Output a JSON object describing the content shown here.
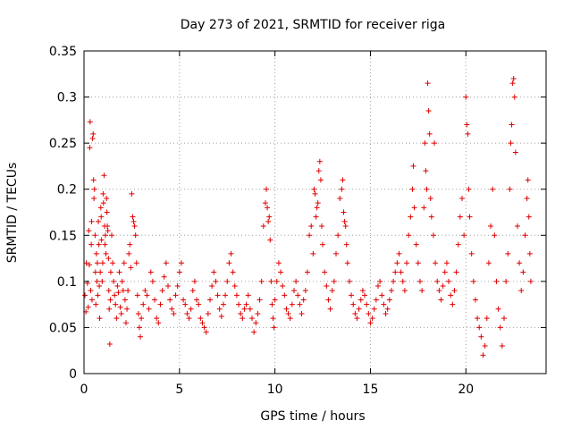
{
  "chart_data": {
    "type": "scatter",
    "title": "Day 273 of 2021, SRMTID for receiver riga",
    "xlabel": "GPS time / hours",
    "ylabel": "SRMTID / TECUs",
    "xlim": [
      0,
      24.2
    ],
    "ylim": [
      0,
      0.35
    ],
    "xticks": [
      0,
      5,
      10,
      15,
      20
    ],
    "xtick_labels": [
      "0",
      "5",
      "10",
      "15",
      "20"
    ],
    "yticks": [
      0,
      0.05,
      0.1,
      0.15,
      0.2,
      0.25,
      0.3,
      0.35
    ],
    "ytick_labels": [
      "0",
      "0.05",
      "0.1",
      "0.15",
      "0.2",
      "0.25",
      "0.3",
      "0.35"
    ],
    "grid": true,
    "marker": "+",
    "series": [
      {
        "name": "SRMTID",
        "color": "#e00000",
        "points": [
          [
            0.05,
            0.085
          ],
          [
            0.1,
            0.067
          ],
          [
            0.12,
            0.12
          ],
          [
            0.18,
            0.098
          ],
          [
            0.22,
            0.072
          ],
          [
            0.25,
            0.155
          ],
          [
            0.28,
            0.118
          ],
          [
            0.3,
            0.245
          ],
          [
            0.32,
            0.273
          ],
          [
            0.35,
            0.09
          ],
          [
            0.38,
            0.14
          ],
          [
            0.4,
            0.165
          ],
          [
            0.42,
            0.08
          ],
          [
            0.45,
            0.255
          ],
          [
            0.48,
            0.26
          ],
          [
            0.5,
            0.21
          ],
          [
            0.52,
            0.19
          ],
          [
            0.55,
            0.2
          ],
          [
            0.58,
            0.15
          ],
          [
            0.6,
            0.11
          ],
          [
            0.62,
            0.075
          ],
          [
            0.65,
            0.13
          ],
          [
            0.68,
            0.1
          ],
          [
            0.7,
            0.12
          ],
          [
            0.72,
            0.085
          ],
          [
            0.75,
            0.165
          ],
          [
            0.78,
            0.14
          ],
          [
            0.8,
            0.095
          ],
          [
            0.82,
            0.06
          ],
          [
            0.85,
            0.11
          ],
          [
            0.88,
            0.18
          ],
          [
            0.9,
            0.17
          ],
          [
            0.92,
            0.145
          ],
          [
            0.95,
            0.1
          ],
          [
            0.98,
            0.12
          ],
          [
            1.0,
            0.195
          ],
          [
            1.02,
            0.185
          ],
          [
            1.05,
            0.215
          ],
          [
            1.08,
            0.16
          ],
          [
            1.1,
            0.14
          ],
          [
            1.12,
            0.15
          ],
          [
            1.15,
            0.13
          ],
          [
            1.18,
            0.19
          ],
          [
            1.2,
            0.175
          ],
          [
            1.22,
            0.16
          ],
          [
            1.25,
            0.155
          ],
          [
            1.28,
            0.125
          ],
          [
            1.3,
            0.09
          ],
          [
            1.32,
            0.07
          ],
          [
            1.35,
            0.032
          ],
          [
            1.38,
            0.08
          ],
          [
            1.4,
            0.11
          ],
          [
            1.45,
            0.15
          ],
          [
            1.5,
            0.12
          ],
          [
            1.55,
            0.1
          ],
          [
            1.6,
            0.085
          ],
          [
            1.65,
            0.075
          ],
          [
            1.7,
            0.06
          ],
          [
            1.75,
            0.095
          ],
          [
            1.8,
            0.088
          ],
          [
            1.85,
            0.11
          ],
          [
            1.9,
            0.072
          ],
          [
            1.95,
            0.065
          ],
          [
            2.0,
            0.1
          ],
          [
            2.05,
            0.09
          ],
          [
            2.1,
            0.12
          ],
          [
            2.15,
            0.08
          ],
          [
            2.2,
            0.055
          ],
          [
            2.25,
            0.07
          ],
          [
            2.3,
            0.09
          ],
          [
            2.35,
            0.13
          ],
          [
            2.4,
            0.14
          ],
          [
            2.45,
            0.115
          ],
          [
            2.5,
            0.195
          ],
          [
            2.55,
            0.17
          ],
          [
            2.6,
            0.165
          ],
          [
            2.65,
            0.16
          ],
          [
            2.7,
            0.15
          ],
          [
            2.75,
            0.12
          ],
          [
            2.8,
            0.085
          ],
          [
            2.85,
            0.065
          ],
          [
            2.9,
            0.05
          ],
          [
            2.95,
            0.04
          ],
          [
            3.0,
            0.06
          ],
          [
            3.1,
            0.075
          ],
          [
            3.2,
            0.09
          ],
          [
            3.3,
            0.085
          ],
          [
            3.4,
            0.07
          ],
          [
            3.5,
            0.11
          ],
          [
            3.6,
            0.1
          ],
          [
            3.7,
            0.08
          ],
          [
            3.8,
            0.06
          ],
          [
            3.9,
            0.055
          ],
          [
            4.0,
            0.075
          ],
          [
            4.1,
            0.09
          ],
          [
            4.2,
            0.105
          ],
          [
            4.3,
            0.12
          ],
          [
            4.4,
            0.095
          ],
          [
            4.5,
            0.08
          ],
          [
            4.6,
            0.07
          ],
          [
            4.7,
            0.065
          ],
          [
            4.8,
            0.085
          ],
          [
            4.9,
            0.095
          ],
          [
            5.0,
            0.11
          ],
          [
            5.1,
            0.12
          ],
          [
            5.2,
            0.08
          ],
          [
            5.3,
            0.075
          ],
          [
            5.4,
            0.065
          ],
          [
            5.5,
            0.06
          ],
          [
            5.6,
            0.07
          ],
          [
            5.7,
            0.09
          ],
          [
            5.8,
            0.1
          ],
          [
            5.9,
            0.08
          ],
          [
            6.0,
            0.075
          ],
          [
            6.1,
            0.06
          ],
          [
            6.2,
            0.055
          ],
          [
            6.3,
            0.05
          ],
          [
            6.4,
            0.045
          ],
          [
            6.5,
            0.065
          ],
          [
            6.6,
            0.08
          ],
          [
            6.7,
            0.095
          ],
          [
            6.8,
            0.11
          ],
          [
            6.9,
            0.1
          ],
          [
            7.0,
            0.085
          ],
          [
            7.1,
            0.07
          ],
          [
            7.2,
            0.062
          ],
          [
            7.3,
            0.075
          ],
          [
            7.4,
            0.085
          ],
          [
            7.5,
            0.1
          ],
          [
            7.6,
            0.12
          ],
          [
            7.7,
            0.13
          ],
          [
            7.8,
            0.11
          ],
          [
            7.9,
            0.095
          ],
          [
            8.0,
            0.085
          ],
          [
            8.1,
            0.075
          ],
          [
            8.2,
            0.065
          ],
          [
            8.3,
            0.06
          ],
          [
            8.4,
            0.07
          ],
          [
            8.5,
            0.075
          ],
          [
            8.6,
            0.085
          ],
          [
            8.7,
            0.07
          ],
          [
            8.8,
            0.06
          ],
          [
            8.9,
            0.045
          ],
          [
            9.0,
            0.055
          ],
          [
            9.1,
            0.065
          ],
          [
            9.2,
            0.08
          ],
          [
            9.3,
            0.1
          ],
          [
            9.4,
            0.16
          ],
          [
            9.5,
            0.185
          ],
          [
            9.55,
            0.2
          ],
          [
            9.6,
            0.18
          ],
          [
            9.65,
            0.165
          ],
          [
            9.7,
            0.17
          ],
          [
            9.75,
            0.145
          ],
          [
            9.8,
            0.1
          ],
          [
            9.85,
            0.075
          ],
          [
            9.9,
            0.06
          ],
          [
            9.95,
            0.05
          ],
          [
            10.0,
            0.08
          ],
          [
            10.1,
            0.1
          ],
          [
            10.2,
            0.12
          ],
          [
            10.3,
            0.11
          ],
          [
            10.4,
            0.095
          ],
          [
            10.5,
            0.085
          ],
          [
            10.6,
            0.07
          ],
          [
            10.7,
            0.065
          ],
          [
            10.8,
            0.06
          ],
          [
            10.9,
            0.075
          ],
          [
            11.0,
            0.09
          ],
          [
            11.1,
            0.1
          ],
          [
            11.2,
            0.085
          ],
          [
            11.3,
            0.075
          ],
          [
            11.4,
            0.065
          ],
          [
            11.5,
            0.08
          ],
          [
            11.6,
            0.09
          ],
          [
            11.7,
            0.11
          ],
          [
            11.8,
            0.15
          ],
          [
            11.9,
            0.16
          ],
          [
            12.0,
            0.13
          ],
          [
            12.05,
            0.2
          ],
          [
            12.1,
            0.195
          ],
          [
            12.15,
            0.17
          ],
          [
            12.2,
            0.18
          ],
          [
            12.25,
            0.185
          ],
          [
            12.3,
            0.22
          ],
          [
            12.35,
            0.23
          ],
          [
            12.4,
            0.21
          ],
          [
            12.45,
            0.16
          ],
          [
            12.5,
            0.14
          ],
          [
            12.6,
            0.11
          ],
          [
            12.7,
            0.095
          ],
          [
            12.8,
            0.08
          ],
          [
            12.9,
            0.07
          ],
          [
            13.0,
            0.09
          ],
          [
            13.1,
            0.1
          ],
          [
            13.2,
            0.13
          ],
          [
            13.3,
            0.15
          ],
          [
            13.4,
            0.19
          ],
          [
            13.5,
            0.2
          ],
          [
            13.55,
            0.21
          ],
          [
            13.6,
            0.175
          ],
          [
            13.65,
            0.165
          ],
          [
            13.7,
            0.16
          ],
          [
            13.75,
            0.14
          ],
          [
            13.8,
            0.12
          ],
          [
            13.9,
            0.1
          ],
          [
            14.0,
            0.085
          ],
          [
            14.1,
            0.075
          ],
          [
            14.2,
            0.065
          ],
          [
            14.3,
            0.06
          ],
          [
            14.4,
            0.07
          ],
          [
            14.5,
            0.08
          ],
          [
            14.6,
            0.09
          ],
          [
            14.7,
            0.085
          ],
          [
            14.8,
            0.075
          ],
          [
            14.9,
            0.065
          ],
          [
            15.0,
            0.055
          ],
          [
            15.1,
            0.06
          ],
          [
            15.2,
            0.07
          ],
          [
            15.3,
            0.08
          ],
          [
            15.4,
            0.095
          ],
          [
            15.5,
            0.1
          ],
          [
            15.6,
            0.085
          ],
          [
            15.7,
            0.075
          ],
          [
            15.8,
            0.065
          ],
          [
            15.9,
            0.07
          ],
          [
            16.0,
            0.08
          ],
          [
            16.1,
            0.09
          ],
          [
            16.2,
            0.1
          ],
          [
            16.3,
            0.11
          ],
          [
            16.4,
            0.12
          ],
          [
            16.5,
            0.13
          ],
          [
            16.6,
            0.11
          ],
          [
            16.7,
            0.1
          ],
          [
            16.8,
            0.09
          ],
          [
            16.9,
            0.12
          ],
          [
            17.0,
            0.15
          ],
          [
            17.1,
            0.17
          ],
          [
            17.2,
            0.2
          ],
          [
            17.25,
            0.225
          ],
          [
            17.3,
            0.18
          ],
          [
            17.4,
            0.14
          ],
          [
            17.5,
            0.12
          ],
          [
            17.6,
            0.1
          ],
          [
            17.7,
            0.09
          ],
          [
            17.8,
            0.18
          ],
          [
            17.85,
            0.25
          ],
          [
            17.9,
            0.22
          ],
          [
            17.95,
            0.2
          ],
          [
            18.0,
            0.315
          ],
          [
            18.05,
            0.285
          ],
          [
            18.1,
            0.26
          ],
          [
            18.15,
            0.19
          ],
          [
            18.2,
            0.17
          ],
          [
            18.3,
            0.15
          ],
          [
            18.35,
            0.25
          ],
          [
            18.4,
            0.12
          ],
          [
            18.5,
            0.1
          ],
          [
            18.6,
            0.09
          ],
          [
            18.7,
            0.08
          ],
          [
            18.8,
            0.095
          ],
          [
            18.9,
            0.11
          ],
          [
            19.0,
            0.12
          ],
          [
            19.1,
            0.1
          ],
          [
            19.2,
            0.085
          ],
          [
            19.3,
            0.075
          ],
          [
            19.4,
            0.09
          ],
          [
            19.5,
            0.11
          ],
          [
            19.6,
            0.14
          ],
          [
            19.7,
            0.17
          ],
          [
            19.8,
            0.19
          ],
          [
            19.9,
            0.15
          ],
          [
            20.0,
            0.3
          ],
          [
            20.05,
            0.27
          ],
          [
            20.1,
            0.26
          ],
          [
            20.15,
            0.2
          ],
          [
            20.2,
            0.17
          ],
          [
            20.3,
            0.13
          ],
          [
            20.4,
            0.1
          ],
          [
            20.5,
            0.08
          ],
          [
            20.6,
            0.06
          ],
          [
            20.7,
            0.05
          ],
          [
            20.8,
            0.04
          ],
          [
            20.9,
            0.02
          ],
          [
            21.0,
            0.03
          ],
          [
            21.1,
            0.06
          ],
          [
            21.2,
            0.12
          ],
          [
            21.3,
            0.16
          ],
          [
            21.4,
            0.2
          ],
          [
            21.5,
            0.15
          ],
          [
            21.6,
            0.1
          ],
          [
            21.7,
            0.07
          ],
          [
            21.8,
            0.05
          ],
          [
            21.9,
            0.03
          ],
          [
            22.0,
            0.06
          ],
          [
            22.1,
            0.1
          ],
          [
            22.2,
            0.13
          ],
          [
            22.3,
            0.2
          ],
          [
            22.35,
            0.25
          ],
          [
            22.4,
            0.27
          ],
          [
            22.45,
            0.315
          ],
          [
            22.5,
            0.32
          ],
          [
            22.55,
            0.3
          ],
          [
            22.6,
            0.24
          ],
          [
            22.7,
            0.16
          ],
          [
            22.8,
            0.12
          ],
          [
            22.9,
            0.09
          ],
          [
            23.0,
            0.11
          ],
          [
            23.1,
            0.15
          ],
          [
            23.2,
            0.19
          ],
          [
            23.25,
            0.21
          ],
          [
            23.3,
            0.17
          ],
          [
            23.35,
            0.13
          ],
          [
            23.4,
            0.1
          ]
        ]
      }
    ]
  }
}
